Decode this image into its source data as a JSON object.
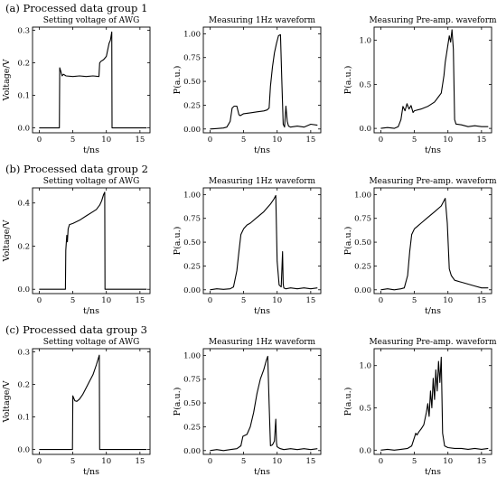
{
  "groups": [
    {
      "title": "(a) Processed data group 1"
    },
    {
      "title": "(b) Processed data group 2"
    },
    {
      "title": "(c) Processed data group 3"
    }
  ],
  "chart_data": [
    {
      "type": "line",
      "group": 0,
      "title": "Setting voltage of AWG",
      "xlabel": "t/ns",
      "ylabel": "Voltage/V",
      "xlim": [
        -1,
        16.5
      ],
      "ylim": [
        -0.015,
        0.31
      ],
      "xticks": [
        0,
        5,
        10,
        15
      ],
      "yticks": [
        0.0,
        0.1,
        0.2,
        0.3
      ],
      "yticklabels": [
        "0.0",
        "0.1",
        "0.2",
        "0.3"
      ],
      "x": [
        0,
        3,
        3.05,
        3.2,
        3.4,
        3.6,
        4,
        5,
        6,
        7,
        8,
        8.9,
        9.0,
        9.2,
        9.6,
        10,
        10.4,
        10.6,
        10.8,
        10.85,
        12,
        16
      ],
      "y": [
        0,
        0,
        0.185,
        0.175,
        0.16,
        0.165,
        0.16,
        0.158,
        0.16,
        0.158,
        0.16,
        0.158,
        0.2,
        0.205,
        0.21,
        0.22,
        0.26,
        0.27,
        0.295,
        0,
        0,
        0
      ]
    },
    {
      "type": "line",
      "group": 0,
      "title": "Measuring 1Hz waveform",
      "xlabel": "t/ns",
      "ylabel": "P(a.u.)",
      "xlim": [
        -1,
        16.5
      ],
      "ylim": [
        -0.04,
        1.07
      ],
      "xticks": [
        0,
        5,
        10,
        15
      ],
      "yticks": [
        0.0,
        0.25,
        0.5,
        0.75,
        1.0
      ],
      "yticklabels": [
        "0.00",
        "0.25",
        "0.50",
        "0.75",
        "1.00"
      ],
      "x": [
        0,
        1,
        2,
        2.5,
        3.0,
        3.3,
        3.6,
        4.0,
        4.3,
        4.5,
        5,
        6,
        7,
        8,
        8.5,
        8.8,
        9.0,
        9.3,
        9.6,
        9.9,
        10.2,
        10.5,
        10.7,
        10.9,
        11.1,
        11.3,
        11.5,
        11.7,
        12,
        13,
        14,
        15,
        16
      ],
      "y": [
        0,
        0.005,
        0.01,
        0.02,
        0.08,
        0.22,
        0.24,
        0.24,
        0.15,
        0.14,
        0.16,
        0.17,
        0.18,
        0.19,
        0.2,
        0.22,
        0.45,
        0.65,
        0.8,
        0.9,
        0.98,
        0.99,
        0.5,
        0.05,
        0.02,
        0.24,
        0.08,
        0.03,
        0.02,
        0.03,
        0.02,
        0.05,
        0.04
      ]
    },
    {
      "type": "line",
      "group": 0,
      "title": "Measuring Pre-amp. waveform",
      "xlabel": "t/ns",
      "ylabel": "P(a.u.)",
      "xlim": [
        -1,
        16.5
      ],
      "ylim": [
        -0.05,
        1.15
      ],
      "xticks": [
        0,
        5,
        10,
        15
      ],
      "yticks": [
        0.0,
        0.5,
        1.0
      ],
      "yticklabels": [
        "0.0",
        "0.5",
        "1.0"
      ],
      "x": [
        0,
        1,
        2,
        2.6,
        3.0,
        3.3,
        3.6,
        3.9,
        4.2,
        4.5,
        4.8,
        5,
        6,
        7,
        8,
        8.5,
        9.0,
        9.2,
        9.4,
        9.6,
        9.8,
        10.0,
        10.2,
        10.4,
        10.6,
        10.8,
        11.0,
        11.2,
        12,
        13,
        14,
        15,
        16
      ],
      "y": [
        0,
        0.01,
        0,
        0.02,
        0.1,
        0.25,
        0.2,
        0.28,
        0.22,
        0.26,
        0.18,
        0.2,
        0.22,
        0.25,
        0.3,
        0.35,
        0.4,
        0.5,
        0.6,
        0.75,
        0.85,
        0.95,
        1.05,
        0.98,
        1.12,
        0.9,
        0.1,
        0.05,
        0.04,
        0.02,
        0.03,
        0.02,
        0.02
      ]
    },
    {
      "type": "line",
      "group": 1,
      "title": "Setting voltage of AWG",
      "xlabel": "t/ns",
      "ylabel": "Voltage/V",
      "xlim": [
        -1,
        16.5
      ],
      "ylim": [
        -0.02,
        0.47
      ],
      "xticks": [
        0,
        5,
        10,
        15
      ],
      "yticks": [
        0.0,
        0.2,
        0.4
      ],
      "yticklabels": [
        "0.0",
        "0.2",
        "0.4"
      ],
      "x": [
        0,
        3.9,
        3.95,
        4.1,
        4.2,
        4.3,
        4.5,
        5,
        6,
        7,
        8,
        8.5,
        9,
        9.3,
        9.6,
        9.75,
        9.8,
        12,
        16
      ],
      "y": [
        0,
        0,
        0.18,
        0.25,
        0.22,
        0.28,
        0.3,
        0.305,
        0.32,
        0.34,
        0.36,
        0.37,
        0.39,
        0.41,
        0.44,
        0.45,
        0,
        0,
        0
      ]
    },
    {
      "type": "line",
      "group": 1,
      "title": "Measuring 1Hz waveform",
      "xlabel": "t/ns",
      "ylabel": "P(a.u.)",
      "xlim": [
        -1,
        16.5
      ],
      "ylim": [
        -0.04,
        1.07
      ],
      "xticks": [
        0,
        5,
        10,
        15
      ],
      "yticks": [
        0.0,
        0.25,
        0.5,
        0.75,
        1.0
      ],
      "yticklabels": [
        "0.00",
        "0.25",
        "0.50",
        "0.75",
        "1.00"
      ],
      "x": [
        0,
        1,
        2,
        3,
        3.5,
        4.0,
        4.3,
        4.6,
        5.0,
        5.5,
        6,
        7,
        8,
        9,
        9.5,
        9.8,
        10.0,
        10.3,
        10.6,
        10.8,
        10.9,
        11.0,
        11.3,
        12,
        13,
        14,
        15,
        16
      ],
      "y": [
        0,
        0.01,
        0.005,
        0.01,
        0.03,
        0.2,
        0.4,
        0.58,
        0.64,
        0.68,
        0.7,
        0.76,
        0.82,
        0.9,
        0.95,
        0.99,
        0.3,
        0.05,
        0.03,
        0.4,
        0.06,
        0.02,
        0.01,
        0.02,
        0.01,
        0.02,
        0.01,
        0.02
      ]
    },
    {
      "type": "line",
      "group": 1,
      "title": "Measuring Pre-amp. waveform",
      "xlabel": "t/ns",
      "ylabel": "P(a.u.)",
      "xlim": [
        -1,
        16.5
      ],
      "ylim": [
        -0.04,
        1.07
      ],
      "xticks": [
        0,
        5,
        10,
        15
      ],
      "yticks": [
        0.0,
        0.25,
        0.5,
        0.75,
        1.0
      ],
      "yticklabels": [
        "0.00",
        "0.25",
        "0.50",
        "0.75",
        "1.00"
      ],
      "x": [
        0,
        1,
        2,
        3,
        3.5,
        4.0,
        4.3,
        4.6,
        5.0,
        5.5,
        6,
        7,
        8,
        9,
        9.3,
        9.6,
        9.9,
        10.2,
        10.5,
        11,
        12,
        13,
        14,
        15,
        16
      ],
      "y": [
        0,
        0.01,
        0,
        0.01,
        0.02,
        0.15,
        0.4,
        0.58,
        0.64,
        0.67,
        0.7,
        0.76,
        0.82,
        0.88,
        0.92,
        0.96,
        0.7,
        0.22,
        0.15,
        0.1,
        0.08,
        0.06,
        0.04,
        0.02,
        0.02
      ]
    },
    {
      "type": "line",
      "group": 2,
      "title": "Setting voltage of AWG",
      "xlabel": "t/ns",
      "ylabel": "Voltage/V",
      "xlim": [
        -1,
        16.5
      ],
      "ylim": [
        -0.015,
        0.31
      ],
      "xticks": [
        0,
        5,
        10,
        15
      ],
      "yticks": [
        0.0,
        0.1,
        0.2,
        0.3
      ],
      "yticklabels": [
        "0.0",
        "0.1",
        "0.2",
        "0.3"
      ],
      "x": [
        0,
        4.95,
        5.0,
        5.1,
        5.3,
        5.6,
        6,
        6.5,
        7,
        7.5,
        8,
        8.5,
        8.8,
        8.95,
        9.0,
        12,
        16
      ],
      "y": [
        0,
        0,
        0.165,
        0.16,
        0.15,
        0.148,
        0.155,
        0.17,
        0.19,
        0.21,
        0.23,
        0.26,
        0.28,
        0.29,
        0,
        0,
        0
      ]
    },
    {
      "type": "line",
      "group": 2,
      "title": "Measuring 1Hz waveform",
      "xlabel": "t/ns",
      "ylabel": "P(a.u.)",
      "xlim": [
        -1,
        16.5
      ],
      "ylim": [
        -0.04,
        1.07
      ],
      "xticks": [
        0,
        5,
        10,
        15
      ],
      "yticks": [
        0.0,
        0.25,
        0.5,
        0.75,
        1.0
      ],
      "yticklabels": [
        "0.00",
        "0.25",
        "0.50",
        "0.75",
        "1.00"
      ],
      "x": [
        0,
        1,
        2,
        3,
        4,
        4.6,
        4.9,
        5.2,
        5.5,
        6,
        6.5,
        7,
        7.5,
        8,
        8.4,
        8.6,
        8.8,
        9.0,
        9.3,
        9.6,
        9.8,
        9.9,
        10.0,
        10.2,
        10.5,
        11,
        12,
        13,
        14,
        15,
        16
      ],
      "y": [
        0,
        0.01,
        0,
        0.01,
        0.02,
        0.05,
        0.15,
        0.16,
        0.17,
        0.25,
        0.4,
        0.6,
        0.75,
        0.85,
        0.95,
        0.99,
        0.5,
        0.05,
        0.06,
        0.1,
        0.33,
        0.08,
        0.04,
        0.03,
        0.02,
        0.01,
        0.02,
        0.01,
        0.02,
        0.01,
        0.02
      ]
    },
    {
      "type": "line",
      "group": 2,
      "title": "Measuring Pre-amp. waveform",
      "xlabel": "t/ns",
      "ylabel": "P(a.u.)",
      "xlim": [
        -1,
        16.5
      ],
      "ylim": [
        -0.05,
        1.2
      ],
      "xticks": [
        0,
        5,
        10,
        15
      ],
      "yticks": [
        0.0,
        0.5,
        1.0
      ],
      "yticklabels": [
        "0.0",
        "0.5",
        "1.0"
      ],
      "x": [
        0,
        1,
        2,
        3,
        4,
        4.6,
        5.0,
        5.2,
        5.4,
        5.7,
        6.0,
        6.4,
        6.8,
        7.0,
        7.2,
        7.4,
        7.6,
        7.8,
        8.0,
        8.2,
        8.4,
        8.6,
        8.8,
        9.0,
        9.2,
        9.5,
        10,
        11,
        12,
        13,
        14,
        15,
        16
      ],
      "y": [
        0,
        0.01,
        0,
        0.01,
        0.02,
        0.05,
        0.15,
        0.2,
        0.18,
        0.22,
        0.25,
        0.3,
        0.45,
        0.55,
        0.4,
        0.7,
        0.5,
        0.85,
        0.6,
        0.95,
        0.7,
        1.05,
        0.8,
        1.1,
        0.2,
        0.05,
        0.03,
        0.02,
        0.02,
        0.01,
        0.02,
        0.01,
        0.02
      ]
    }
  ]
}
